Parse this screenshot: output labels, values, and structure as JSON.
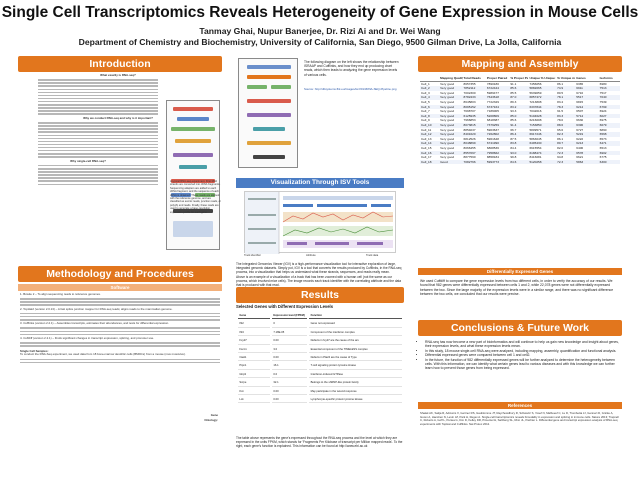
{
  "header": {
    "title": "Single Cell Transcriptomics Reveals Heterogeneity of Gene Expression in Mouse Cells",
    "authors": "Tanmay Ghai, Nupur Banerjee, Dr. Rizi Ai and Dr. Wei Wang",
    "affiliation": "Department of Chemistry and Biochemistry, University of California, San Diego, 9500 Gilman Drive, La Jolla, California"
  },
  "sections": {
    "introduction": "Introduction",
    "methodology": "Methodology and Procedures",
    "software": "Software",
    "results": "Results",
    "mapping": "Mapping and Assembly",
    "differential": "Differentially Expressed Genes",
    "conclusions": "Conclusions & Future Work",
    "references": "References",
    "visualization": "Visualization Through ISV Tools"
  },
  "intro": {
    "q1": "What exactly is RNA-seq?",
    "q2": "Why we conduct RNA-seq and why is it important?",
    "q3": "Why single-cell RNA-seq?",
    "pipeline_caption": "A typical RNA-seq experiment. First RNA strands are converted into cDNA fragments. Sequencing adapters are added to each cDNA fragment, and the sequence of each cDNA is obtained. These reads are aligned with the reference genome, and are classified as exonic reads, junction reads, or poly(A) end reads. Finally, these reads are used to generate a base-resolution expression profile for each gene.",
    "workflow_caption": "The following diagram on the left shows the relationship between ISRAAP and Cufflinks, and how they end up producing chart reads, which then leads to analyzing the gene expression levels of various cells.",
    "workflow_source": "Source: http://dbsystems.fbk.eu/images/isr/2013/RNA-SEQ-Pipeline.png"
  },
  "software": {
    "title": "Software",
    "items": [
      "1. Bowtie 2 – To align sequencing reads to reference genomes.",
      "2. TopHat2 (version 2.0.13) – A fast splice junction mapper for RNA-seq reads; aligns reads to the mammalian genome.",
      "3. Cufflinks (version 2.2.1) – Assembles transcripts, estimates their abundances, and tests for differential expression.",
      "4. Cuffdiff (version 2.2.1) – Finds significant changes in transcript expression, splicing, and promoter use."
    ],
    "single_cell_title": "Single Cell Samples:",
    "single_cell_text": "To conduct the RNA-Seq experiment, we used data from 18 bone-marrow dendritic cells (BMDCs) from a mouse (mus musculus).",
    "gene_label": "Gene",
    "ontology_label": "Ontology:"
  },
  "isv": {
    "caption": "The Integrated Genomics Viewer (IGV) is a high-performance visualization tool for interactive exploration of large, integrated genomic datasets. Simply put, IGV is a tool that converts the results produced by Cufflinks, in the RNA-seq process, into a visualization that helps us understand what these strands, sequences, and reads really mean.",
    "caption2": "Above is an example of a visualization of a track that has been zoomed with a human cell (not the same as our process, which involved mice cells). The image records each track identifier with the correlating attribute and the data that is produced with that read.",
    "track_left": "Track identifier",
    "track_mid": "Attribute",
    "track_right": "Track data"
  },
  "results": {
    "table_title": "Selected Genes with Different Expression Levels",
    "columns": [
      "Gene",
      "Expression level (FPKM)",
      "Function"
    ],
    "rows": [
      [
        "Ifit2",
        "0",
        "Gene not expressed"
      ],
      [
        "Ifit3",
        "7.18E-05",
        "Component of the interferon complex"
      ],
      [
        "Fxyd7",
        "0.00",
        "Defects in fxyd7 are the cause of the ars"
      ],
      [
        "Fscn1",
        "3.0",
        "Essential component of the TIMELESS complex"
      ],
      [
        "Oasl1",
        "0.00",
        "Defects in Pla24 are the cause of Type"
      ],
      [
        "Ptpn1",
        "16.1",
        "T-cell signaling protein tyrosine kinase"
      ],
      [
        "Gbp3",
        "0.0",
        "Interferon-induced GTPase"
      ],
      [
        "Scrpe",
        "32.1",
        "Belongs to the shRNP-like protein family"
      ],
      [
        "Kcn",
        "0.00",
        "May participate in the wound response"
      ],
      [
        "Lck",
        "0.00",
        "Lymphocyte-specific protein tyrosine kinase"
      ]
    ],
    "caption": "The table above represents the gene's expressed throughout the RNA-seq process and the level at which they are expressed in the units FPKM, which stands for 'Fragments Per Kilobase of transcript per Million mapped reads'. To the right, each gene's function is explained. This information can be found at http://www.ebi.ac.uk"
  },
  "mapping": {
    "columns": [
      "Mapping Quality",
      "Total Reads",
      "Proper Paired",
      "% Proper Paired",
      "Unique % Unique Mapper",
      "% Unique mapper",
      "Genes",
      "Isoforms"
    ],
    "rows": [
      [
        "Cell_1",
        "Very good",
        "8657355",
        "7890180",
        "91.1",
        "7456056",
        "86.1",
        "6365",
        "6980"
      ],
      [
        "Cell_2",
        "Very good",
        "7852112",
        "6722444",
        "85.6",
        "5882065",
        "74.9",
        "6911",
        "7513"
      ],
      [
        "Cell_3",
        "Very good",
        "7002300",
        "5989477",
        "85.5",
        "5639059",
        "80.5",
        "6716",
        "7517"
      ],
      [
        "Cell_4",
        "Very good",
        "8782433",
        "7643618",
        "87.0",
        "6857472",
        "78.1",
        "5517",
        "7040"
      ],
      [
        "Cell_5",
        "Very good",
        "8645803",
        "7722329",
        "89.3",
        "7213808",
        "83.4",
        "6815",
        "7539"
      ],
      [
        "Cell_6",
        "Very good",
        "8095152",
        "6737164",
        "83.2",
        "6337844",
        "78.3",
        "6214",
        "6799"
      ],
      [
        "Cell_7",
        "Very good",
        "7698707",
        "7186005",
        "93.3",
        "7042016",
        "91.5",
        "6507",
        "6924"
      ],
      [
        "Cell_8",
        "Very good",
        "6125935",
        "5208809",
        "85.0",
        "5104628",
        "83.3",
        "5714",
        "6027"
      ],
      [
        "Cell_9",
        "Very good",
        "7966853",
        "6818387",
        "85.6",
        "6216008",
        "78.0",
        "6630",
        "6975"
      ],
      [
        "Cell_10",
        "Very good",
        "8073815",
        "7379259",
        "91.4",
        "7153850",
        "88.6",
        "6396",
        "6679"
      ],
      [
        "Cell_11",
        "Very good",
        "8854037",
        "5903637",
        "66.7",
        "5809571",
        "65.6",
        "6727",
        "6890"
      ],
      [
        "Cell_12",
        "Very good",
        "8401620",
        "7262802",
        "86.4",
        "6917246",
        "82.3",
        "5219",
        "6568"
      ],
      [
        "Cell_13",
        "Very good",
        "6812526",
        "5961648",
        "87.5",
        "5863045",
        "86.1",
        "6222",
        "6573"
      ],
      [
        "Cell_14",
        "Very good",
        "8048899",
        "6741990",
        "83.8",
        "6495430",
        "80.7",
        "6213",
        "6471"
      ],
      [
        "Cell_15",
        "Very good",
        "8066455",
        "6808536",
        "84.4",
        "6615554",
        "82.0",
        "6406",
        "6513"
      ],
      [
        "Cell_16",
        "Very good",
        "8557097",
        "7958662",
        "93.0",
        "6188474",
        "72.3",
        "6578",
        "6902"
      ],
      [
        "Cell_17",
        "Very good",
        "8877590",
        "8858184",
        "99.8",
        "8416081",
        "94.8",
        "6621",
        "6775"
      ],
      [
        "Cell_18",
        "Good",
        "7082766",
        "5993773",
        "84.6",
        "5120258",
        "72.3",
        "5863",
        "6300"
      ]
    ]
  },
  "differential": {
    "text": "We used Cuffdiff to compare the gene expression levels from two different cells, in order to verify the accuracy of our results. We found that 982 genes were differentially expressed between cells 1 and 2, while 22,078 genes were not differentially expressed between the two. Since the large majority of the expression levels were in a similar range, and there was no significant difference between the two cells, we concluded that our results were precise."
  },
  "conclusions": {
    "items": [
      "RNA-seq has now become a new part of bioinformatics and will continue to help us gain new knowledge and insight about genes, their expression levels, and what these expression levels mean.",
      "In this study, 18 mouse single-cell RNA-seq were analyzed, including mapping, assembly, quantification and functional analysis.",
      "Differential expressed genes were compared between cell 1 and cell2.",
      "In the future, the function of 982 differentially expressed genes will be further analyzed to determine the heterogeneity between cells. With this information, we can identify what certain genes lead to various diseases and with this knowledge we can further learn how to prevent those genes from being expressed."
    ]
  },
  "references": {
    "text": "Shalek AK, Satija R, Adiconis X, Gertner RS, Gaublomme JT, Raychowdhury R, Schwartz S, Yosef N, Malboeuf C, Lu D, Trombetta JJ, Gennert D, Gnirke A, Goren A, Hacohen N, Levin JZ, Park H, Regev A. Single-cell transcriptomics reveals bimodality in expression and splicing in immune cells. Nature 2013; Trapnell C, Roberts A, Goff L, Pertea G, Kim D, Kelley DR, Pimentel H, Salzberg SL, Rinn JL, Pachter L. Differential gene and transcript expression analysis of RNA-seq experiments with TopHat and Cufflinks. Nat Protoc 2012."
  }
}
